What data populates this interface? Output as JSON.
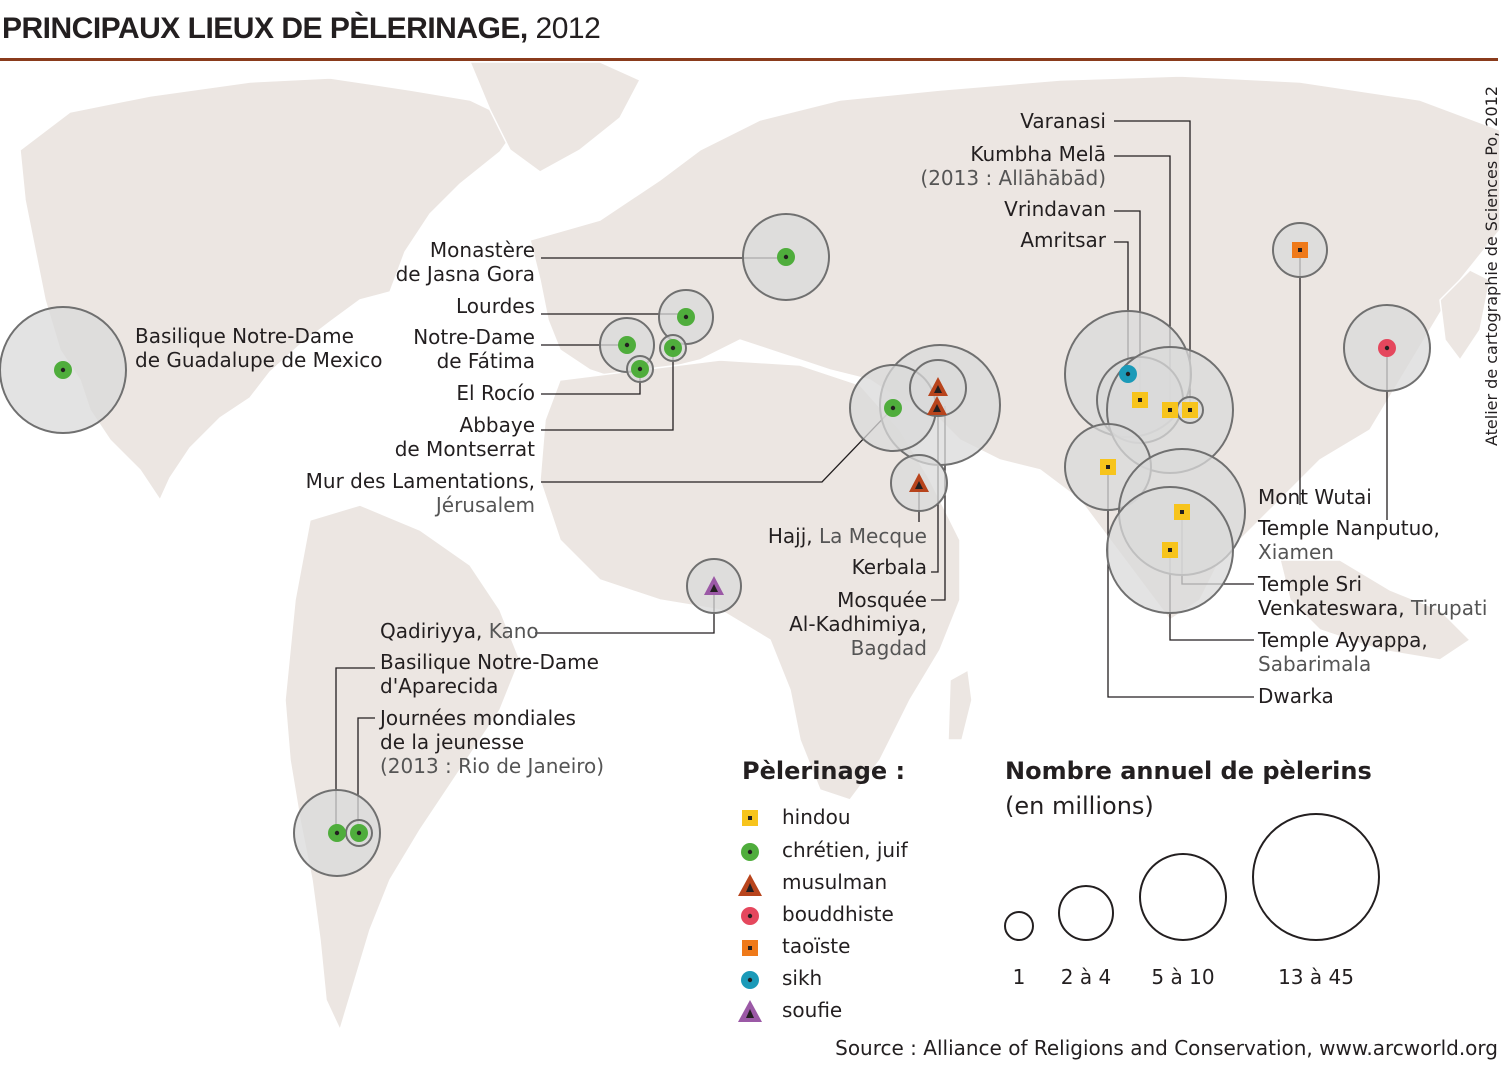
{
  "title": {
    "main": "PRINCIPAUX LIEUX DE PÈLERINAGE,",
    "year": "2012"
  },
  "credit": "Atelier de cartographie de Sciences Po, 2012",
  "source": "Source : Alliance of Religions and Conservation, www.arcworld.org",
  "colors": {
    "hindou": "#f7c41c",
    "chretien": "#4fad3c",
    "musulman": "#b8441c",
    "bouddhiste": "#e5475d",
    "taoiste": "#ef7a1a",
    "sikh": "#1b9ab8",
    "soufie": "#9b59a6",
    "land": "#ece6e2",
    "circle_fill": "#dcdcdc",
    "circle_stroke": "#707070",
    "title_rule": "#8a3b1c"
  },
  "sites": {
    "guadalupe": {
      "name": "Basilique Notre-Dame",
      "name2": "de Guadalupe de Mexico",
      "religion": "chretien",
      "size_class": "13 à 45"
    },
    "jasna_gora": {
      "name": "Monastère",
      "name2": "de Jasna Gora",
      "religion": "chretien",
      "size_class": "5 à 10"
    },
    "lourdes": {
      "name": "Lourdes",
      "religion": "chretien",
      "size_class": "2 à 4"
    },
    "fatima": {
      "name": "Notre-Dame",
      "name2": "de Fátima",
      "religion": "chretien",
      "size_class": "2 à 4"
    },
    "rocio": {
      "name": "El Rocío",
      "religion": "chretien",
      "size_class": "1"
    },
    "montserrat": {
      "name": "Abbaye",
      "name2": "de Montserrat",
      "religion": "chretien",
      "size_class": "1"
    },
    "jerusalem": {
      "name": "Mur des Lamentations,",
      "name2": "Jérusalem",
      "religion": "chretien",
      "size_class": "5 à 10"
    },
    "mecque": {
      "name": "Hajj,",
      "name2": "La Mecque",
      "religion": "musulman",
      "size_class": "2 à 4"
    },
    "kerbala": {
      "name": "Kerbala",
      "religion": "musulman",
      "size_class": "13 à 45"
    },
    "kadhimiya": {
      "name": "Mosquée",
      "name2": "Al-Kadhimiya,",
      "name3": "Bagdad",
      "religion": "musulman",
      "size_class": "2 à 4"
    },
    "kano": {
      "name": "Qadiriyya,",
      "name2": "Kano",
      "religion": "soufie",
      "size_class": "2 à 4"
    },
    "aparecida": {
      "name": "Basilique Notre-Dame",
      "name2": "d'Aparecida",
      "religion": "chretien",
      "size_class": "5 à 10"
    },
    "jmj": {
      "name": "Journées mondiales",
      "name2": "de la jeunesse",
      "name3": "(2013 : Rio de Janeiro)",
      "religion": "chretien",
      "size_class": "1"
    },
    "varanasi": {
      "name": "Varanasi",
      "religion": "hindou",
      "size_class": "1"
    },
    "kumbha": {
      "name": "Kumbha Melā",
      "name2": "(2013 : Allāhābād)",
      "religion": "hindou",
      "size_class": "13 à 45"
    },
    "vrindavan": {
      "name": "Vrindavan",
      "religion": "hindou",
      "size_class": "5 à 10"
    },
    "amritsar": {
      "name": "Amritsar",
      "religion": "sikh",
      "size_class": "13 à 45"
    },
    "wutai": {
      "name": "Mont Wutai",
      "religion": "taoiste",
      "size_class": "2 à 4"
    },
    "nanputuo": {
      "name": "Temple Nanputuo,",
      "name2": "Xiamen",
      "religion": "bouddhiste",
      "size_class": "5 à 10"
    },
    "tirupati": {
      "name": "Temple Sri",
      "name2": "Venkateswara,",
      "name3": "Tirupati",
      "religion": "hindou",
      "size_class": "13 à 45"
    },
    "sabarimala": {
      "name": "Temple Ayyappa,",
      "name2": "Sabarimala",
      "religion": "hindou",
      "size_class": "13 à 45"
    },
    "dwarka": {
      "name": "Dwarka",
      "religion": "hindou",
      "size_class": "5 à 10"
    }
  },
  "legend": {
    "title": "Pèlerinage :",
    "items": [
      {
        "label": "hindou",
        "icon": "yellow-square-icon"
      },
      {
        "label": "chrétien, juif",
        "icon": "green-circle-icon"
      },
      {
        "label": "musulman",
        "icon": "brown-triangle-icon"
      },
      {
        "label": "bouddhiste",
        "icon": "red-circle-icon"
      },
      {
        "label": "taoïste",
        "icon": "orange-square-icon"
      },
      {
        "label": "sikh",
        "icon": "blue-circle-icon"
      },
      {
        "label": "soufie",
        "icon": "purple-triangle-icon"
      }
    ]
  },
  "size_legend": {
    "title": "Nombre annuel de pèlerins",
    "subtitle": "(en millions)",
    "classes": [
      "1",
      "2 à 4",
      "5 à 10",
      "13 à 45"
    ]
  }
}
